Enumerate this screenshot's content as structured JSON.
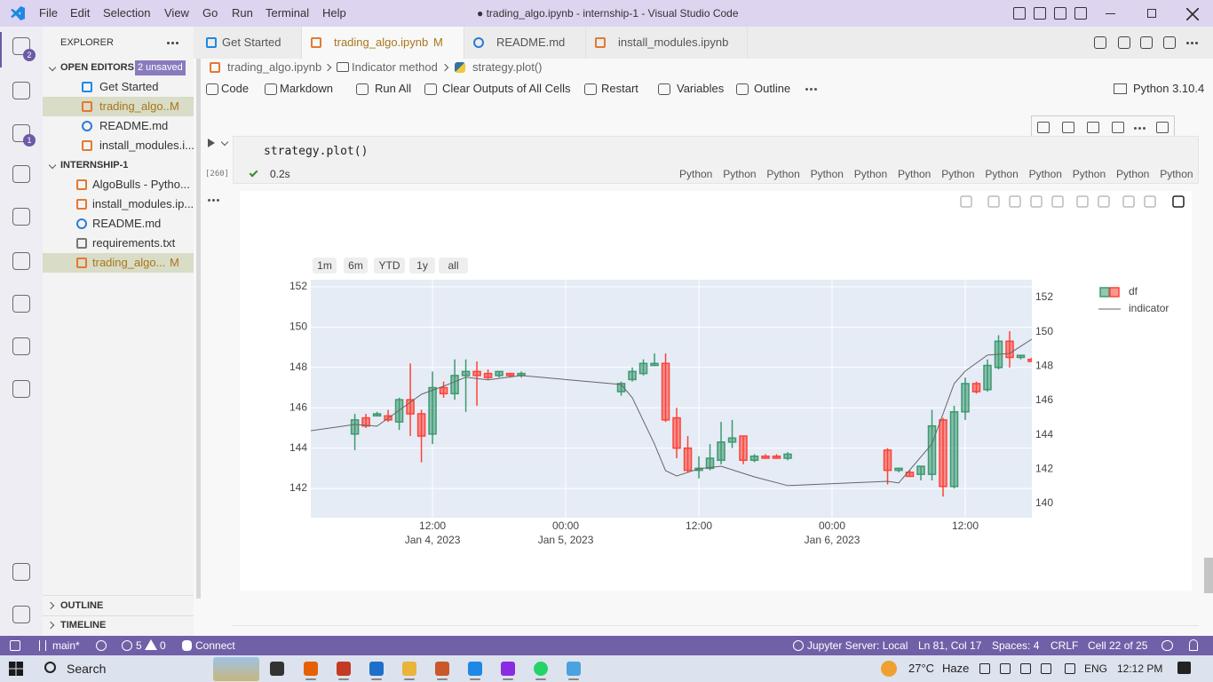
{
  "title_bar": {
    "menu": [
      "File",
      "Edit",
      "Selection",
      "View",
      "Go",
      "Run",
      "Terminal",
      "Help"
    ],
    "title": "● trading_algo.ipynb - internship-1 - Visual Studio Code"
  },
  "activity_bar": {
    "badges": [
      2,
      1
    ]
  },
  "explorer": {
    "title": "EXPLORER",
    "open_editors": {
      "label": "OPEN EDITORS",
      "badge": "2 unsaved",
      "items": [
        {
          "name": "Get Started"
        },
        {
          "name": "trading_algo...",
          "status": "M"
        },
        {
          "name": "README.md"
        },
        {
          "name": "install_modules.i..."
        }
      ]
    },
    "workspace": {
      "label": "INTERNSHIP-1",
      "items": [
        {
          "name": "AlgoBulls - Pytho..."
        },
        {
          "name": "install_modules.ip..."
        },
        {
          "name": "README.md"
        },
        {
          "name": "requirements.txt"
        },
        {
          "name": "trading_algo...",
          "status": "M"
        }
      ]
    },
    "outline": "OUTLINE",
    "timeline": "TIMELINE"
  },
  "tabs": [
    {
      "name": "Get Started"
    },
    {
      "name": "trading_algo.ipynb",
      "status": "M"
    },
    {
      "name": "README.md"
    },
    {
      "name": "install_modules.ipynb"
    }
  ],
  "breadcrumb": [
    "trading_algo.ipynb",
    "Indicator method",
    "strategy.plot()"
  ],
  "toolbar": {
    "items": [
      "Code",
      "Markdown",
      "Run All",
      "Clear Outputs of All Cells",
      "Restart",
      "Variables",
      "Outline"
    ],
    "kernel": "Python 3.10.4"
  },
  "cell": {
    "code": "strategy.plot()",
    "exec_count": "[260]",
    "time": "0.2s",
    "languages": [
      "Python",
      "Python",
      "Python",
      "Python",
      "Python",
      "Python",
      "Python",
      "Python",
      "Python",
      "Python",
      "Python",
      "Python"
    ]
  },
  "chart_data": {
    "type": "candlestick",
    "range_buttons": [
      "1m",
      "6m",
      "YTD",
      "1y",
      "all"
    ],
    "xlim": [
      "2023-01-04 01:02",
      "2023-01-06 18:00"
    ],
    "xticks": [
      {
        "value": "2023-01-04 12:00",
        "label": [
          "12:00",
          "Jan 4, 2023"
        ]
      },
      {
        "value": "2023-01-05 00:00",
        "label": [
          "00:00",
          "Jan 5, 2023"
        ]
      },
      {
        "value": "2023-01-05 12:00",
        "label": "12:00"
      },
      {
        "value": "2023-01-06 00:00",
        "label": [
          "00:00",
          "Jan 6, 2023"
        ]
      },
      {
        "value": "2023-01-06 12:00",
        "label": "12:00"
      }
    ],
    "ylim": [
      140.55,
      152.35
    ],
    "yticks": [
      142,
      144,
      146,
      148,
      150,
      152
    ],
    "y2lim": [
      139.17,
      153.03
    ],
    "y2ticks": [
      140,
      142,
      144,
      146,
      148,
      150,
      152
    ],
    "grid": true,
    "legend": "right",
    "series": [
      {
        "name": "df",
        "type": "candlestick",
        "increasing_color": "#3d9970",
        "decreasing_color": "#ff4136",
        "x": [
          "2023-01-04 05:00",
          "2023-01-04 06:00",
          "2023-01-04 07:00",
          "2023-01-04 08:00",
          "2023-01-04 09:00",
          "2023-01-04 10:00",
          "2023-01-04 11:00",
          "2023-01-04 12:00",
          "2023-01-04 13:00",
          "2023-01-04 14:00",
          "2023-01-04 15:00",
          "2023-01-04 16:00",
          "2023-01-04 17:00",
          "2023-01-04 18:00",
          "2023-01-04 19:00",
          "2023-01-04 20:00",
          "2023-01-05 05:00",
          "2023-01-05 06:00",
          "2023-01-05 07:00",
          "2023-01-05 08:00",
          "2023-01-05 09:00",
          "2023-01-05 10:00",
          "2023-01-05 11:00",
          "2023-01-05 12:00",
          "2023-01-05 13:00",
          "2023-01-05 14:00",
          "2023-01-05 15:00",
          "2023-01-05 16:00",
          "2023-01-05 17:00",
          "2023-01-05 18:00",
          "2023-01-05 19:00",
          "2023-01-05 20:00",
          "2023-01-06 05:00",
          "2023-01-06 06:00",
          "2023-01-06 07:00",
          "2023-01-06 08:00",
          "2023-01-06 09:00",
          "2023-01-06 10:00",
          "2023-01-06 11:00",
          "2023-01-06 12:00",
          "2023-01-06 13:00",
          "2023-01-06 14:00",
          "2023-01-06 15:00",
          "2023-01-06 16:00",
          "2023-01-06 17:00",
          "2023-01-06 18:00"
        ],
        "open": [
          144.7,
          145.5,
          145.6,
          145.6,
          145.3,
          146.4,
          145.7,
          144.7,
          147.0,
          146.7,
          147.6,
          147.8,
          147.7,
          147.6,
          147.7,
          147.6,
          146.8,
          147.4,
          147.7,
          148.1,
          148.2,
          145.5,
          144.0,
          142.9,
          143.0,
          143.4,
          144.3,
          144.6,
          143.4,
          143.6,
          143.6,
          143.5,
          143.9,
          142.9,
          142.8,
          142.7,
          142.7,
          145.4,
          142.1,
          145.8,
          147.2,
          146.9,
          148.0,
          149.3,
          148.5,
          148.4
        ],
        "high": [
          145.7,
          145.7,
          145.8,
          145.9,
          146.5,
          148.2,
          145.9,
          147.8,
          147.3,
          148.4,
          148.4,
          148.3,
          147.9,
          147.8,
          147.7,
          147.8,
          147.3,
          148.0,
          148.4,
          148.7,
          148.7,
          146.0,
          144.6,
          143.6,
          144.2,
          145.3,
          145.4,
          144.6,
          143.7,
          143.7,
          143.7,
          143.8,
          144.0,
          143.0,
          142.9,
          143.1,
          145.9,
          145.5,
          146.1,
          147.5,
          147.3,
          148.4,
          149.6,
          149.8,
          148.6,
          148.5
        ],
        "low": [
          143.9,
          145.0,
          145.6,
          145.3,
          144.9,
          144.6,
          143.3,
          144.2,
          146.5,
          146.4,
          145.8,
          146.1,
          147.4,
          147.5,
          147.5,
          147.5,
          146.6,
          147.3,
          147.6,
          148.1,
          145.3,
          143.5,
          142.8,
          142.5,
          142.9,
          143.2,
          144.0,
          143.2,
          143.3,
          143.5,
          143.5,
          143.4,
          142.2,
          142.8,
          142.6,
          142.4,
          142.4,
          141.6,
          142.0,
          145.4,
          146.7,
          146.8,
          147.9,
          148.0,
          148.4,
          148.3
        ],
        "close": [
          145.4,
          145.1,
          145.7,
          145.4,
          146.4,
          145.7,
          144.6,
          147.0,
          146.7,
          147.6,
          147.8,
          147.6,
          147.5,
          147.8,
          147.6,
          147.7,
          147.2,
          147.8,
          148.2,
          148.2,
          145.4,
          144.0,
          142.9,
          143.0,
          143.5,
          144.3,
          144.5,
          143.4,
          143.6,
          143.5,
          143.5,
          143.7,
          142.9,
          143.0,
          142.6,
          143.1,
          145.1,
          142.1,
          145.8,
          147.2,
          146.8,
          148.1,
          149.3,
          148.5,
          148.6,
          148.3
        ]
      },
      {
        "name": "indicator",
        "type": "line",
        "axis": "y2",
        "color": "#666666",
        "x": [
          "2023-01-04 01:02",
          "2023-01-04 05:00",
          "2023-01-04 07:00",
          "2023-01-04 09:00",
          "2023-01-04 11:00",
          "2023-01-04 13:00",
          "2023-01-04 15:00",
          "2023-01-04 17:00",
          "2023-01-04 20:00",
          "2023-01-05 05:00",
          "2023-01-05 06:00",
          "2023-01-05 08:00",
          "2023-01-05 09:00",
          "2023-01-05 10:00",
          "2023-01-05 12:00",
          "2023-01-05 14:00",
          "2023-01-05 17:00",
          "2023-01-05 20:00",
          "2023-01-06 05:00",
          "2023-01-06 06:00",
          "2023-01-06 09:00",
          "2023-01-06 11:00",
          "2023-01-06 12:00",
          "2023-01-06 14:00",
          "2023-01-06 16:00",
          "2023-01-06 18:00"
        ],
        "values": [
          144.24,
          144.6,
          144.5,
          145.43,
          146.36,
          146.83,
          147.35,
          147.2,
          147.45,
          146.93,
          146.16,
          143.47,
          141.91,
          141.6,
          142.02,
          142.17,
          141.55,
          141.04,
          141.29,
          141.19,
          143.47,
          146.98,
          147.71,
          148.64,
          148.74,
          149.57
        ]
      }
    ]
  },
  "status_bar": {
    "branch": "main*",
    "errors": 5,
    "warnings": 0,
    "connect": "Connect",
    "jupyter": "Jupyter Server: Local",
    "position": "Ln 81, Col 17",
    "spaces": "Spaces: 4",
    "eol": "CRLF",
    "cell": "Cell 22 of 25"
  },
  "taskbar": {
    "search": "Search",
    "temperature": "27°C",
    "weather": "Haze",
    "language": "ENG",
    "time": "12:12 PM"
  }
}
